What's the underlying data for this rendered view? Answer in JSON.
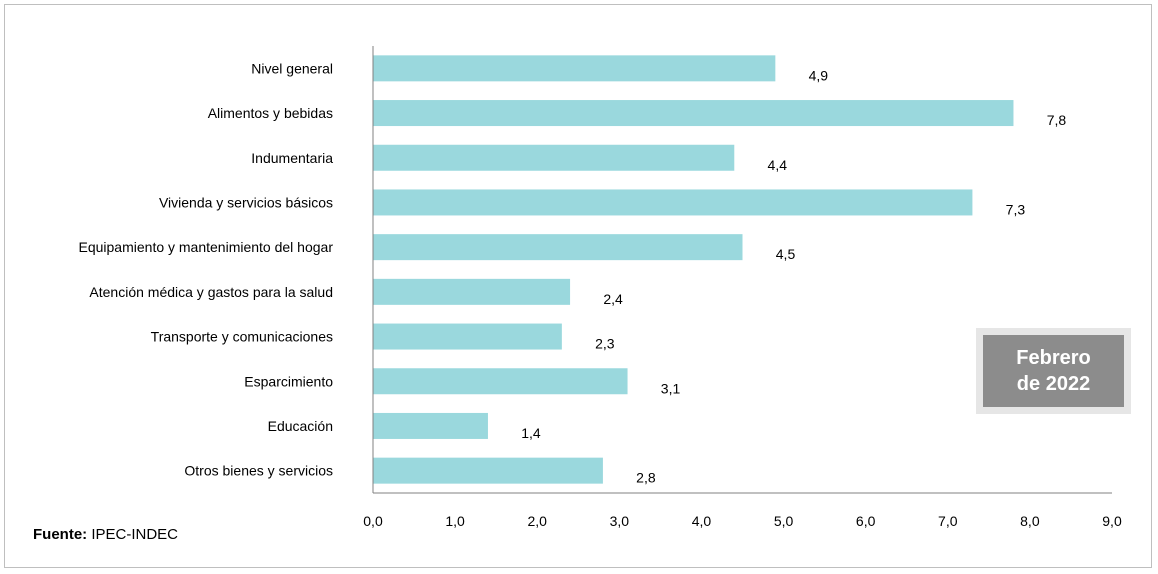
{
  "chart_data": {
    "type": "bar",
    "orientation": "horizontal",
    "categories": [
      "Nivel  general",
      "Alimentos y bebidas",
      "Indumentaria",
      "Vivienda y servicios básicos",
      "Equipamiento  y  mantenimiento  del hogar",
      "Atención  médica y gastos para la salud",
      "Transporte  y comunicaciones",
      "Esparcimiento",
      "Educación",
      "Otros bienes y servicios"
    ],
    "values": [
      4.9,
      7.8,
      4.4,
      7.3,
      4.5,
      2.4,
      2.3,
      3.1,
      1.4,
      2.8
    ],
    "value_labels": [
      "4,9",
      "7,8",
      "4,4",
      "7,3",
      "4,5",
      "2,4",
      "2,3",
      "3,1",
      "1,4",
      "2,8"
    ],
    "xlim": [
      0,
      9
    ],
    "xticks": [
      0,
      1,
      2,
      3,
      4,
      5,
      6,
      7,
      8,
      9
    ],
    "xtick_labels": [
      "0,0",
      "1,0",
      "2,0",
      "3,0",
      "4,0",
      "5,0",
      "6,0",
      "7,0",
      "8,0",
      "9,0"
    ],
    "bar_color": "#9ad8dd",
    "axis_color": "#808080",
    "grid": false,
    "legend": false
  },
  "source": {
    "label": "Fuente:",
    "text": " IPEC-INDEC"
  },
  "period_box": {
    "line1": "Febrero",
    "line2": "de 2022",
    "outer_color": "#e6e6e6",
    "inner_color": "#8c8c8c"
  }
}
